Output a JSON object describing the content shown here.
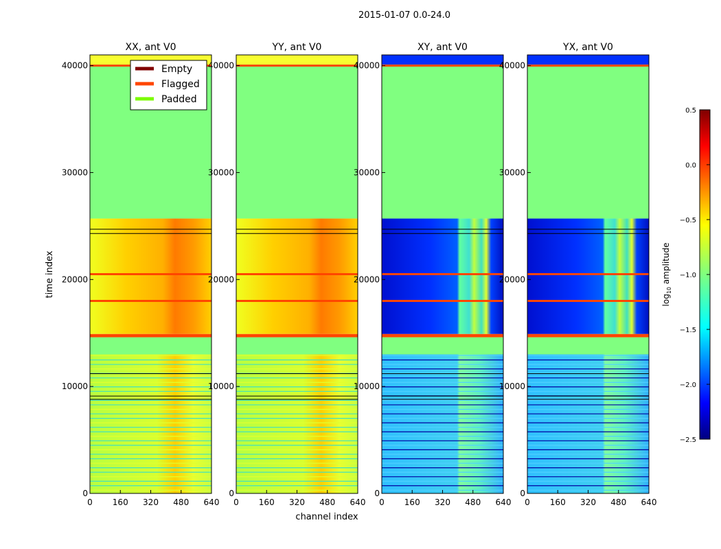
{
  "chart_data": {
    "type": "heatmap",
    "suptitle": "2015-01-07 0.0-24.0",
    "xlabel": "channel index",
    "ylabel": "time index",
    "xlim": [
      0,
      640
    ],
    "ylim": [
      0,
      41000
    ],
    "xticks": [
      0,
      160,
      320,
      480,
      640
    ],
    "yticks": [
      0,
      10000,
      20000,
      30000,
      40000
    ],
    "panels": [
      {
        "title": "XX, ant V0",
        "kind": "parallel"
      },
      {
        "title": "YY, ant V0",
        "kind": "parallel"
      },
      {
        "title": "XY, ant V0",
        "kind": "cross"
      },
      {
        "title": "YX, ant V0",
        "kind": "cross"
      }
    ],
    "regions": {
      "padded": [
        25700,
        41000
      ],
      "flagged_bands": [
        14600,
        14900
      ],
      "flagged_rows": [
        40000,
        20500,
        18000
      ],
      "empty_rows": [
        24700,
        24300,
        11200,
        9100,
        8800
      ]
    },
    "legend": {
      "location": "upper-right of first panel",
      "items": [
        {
          "label": "Empty",
          "color": "#800000"
        },
        {
          "label": "Flagged",
          "color": "#ff4500"
        },
        {
          "label": "Padded",
          "color": "#7cfc00"
        }
      ]
    },
    "colorbar": {
      "label": "log",
      "label_sub": "10",
      "label_rest": " amplitude",
      "range": [
        -2.5,
        0.5
      ],
      "ticks": [
        "0.5",
        "0.0",
        "−0.5",
        "−1.0",
        "−1.5",
        "−2.0",
        "−2.5"
      ],
      "tick_values": [
        0.5,
        0.0,
        -0.5,
        -1.0,
        -1.5,
        -2.0,
        -2.5
      ],
      "colormap": "jet"
    },
    "colors": {
      "padded_fill": "#80ff80",
      "flagged_line": "#ff4500",
      "empty_line": "#800000"
    }
  }
}
